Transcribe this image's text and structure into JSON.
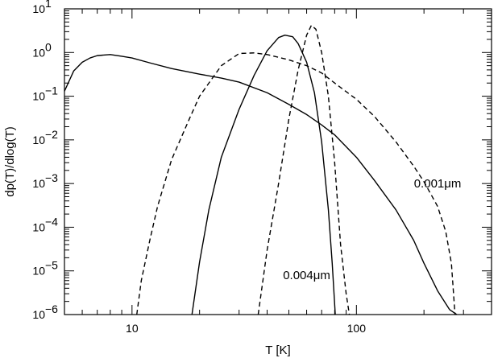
{
  "chart_data": {
    "type": "line",
    "xlabel": "T [K]",
    "ylabel": "dp(T)/dlog(T)",
    "x_scale": "log",
    "y_scale": "log",
    "xlim": [
      5,
      400
    ],
    "ylim": [
      1e-06,
      10
    ],
    "x_ticks": [
      {
        "value": 10,
        "label": "10"
      },
      {
        "value": 100,
        "label": "100"
      }
    ],
    "y_ticks": [
      {
        "value": 1e-06,
        "base": "10",
        "exp": "−6"
      },
      {
        "value": 1e-05,
        "base": "10",
        "exp": "−5"
      },
      {
        "value": 0.0001,
        "base": "10",
        "exp": "−4"
      },
      {
        "value": 0.001,
        "base": "10",
        "exp": "−3"
      },
      {
        "value": 0.01,
        "base": "10",
        "exp": "−2"
      },
      {
        "value": 0.1,
        "base": "10",
        "exp": "−1"
      },
      {
        "value": 1,
        "base": "10",
        "exp": "0"
      },
      {
        "value": 10,
        "base": "10",
        "exp": "1"
      }
    ],
    "annotations": [
      {
        "text": "0.001μm",
        "x": 230,
        "y": 0.001
      },
      {
        "text": "0.004μm",
        "x": 60,
        "y": 8e-06
      }
    ],
    "series": [
      {
        "style": "solid",
        "x": [
          5.0,
          5.5,
          6.0,
          6.5,
          7.0,
          8.0,
          9.0,
          10,
          12,
          15,
          20,
          25,
          30,
          40,
          50,
          60,
          70,
          80,
          100,
          120,
          150,
          180,
          200,
          230,
          260,
          280
        ],
        "y": [
          0.13,
          0.38,
          0.6,
          0.75,
          0.85,
          0.9,
          0.82,
          0.75,
          0.58,
          0.43,
          0.32,
          0.26,
          0.21,
          0.12,
          0.065,
          0.038,
          0.022,
          0.013,
          0.004,
          0.0012,
          0.00025,
          5e-05,
          1.5e-05,
          3.5e-06,
          1.3e-06,
          1e-06
        ]
      },
      {
        "style": "solid",
        "x": [
          18.5,
          20,
          22,
          25,
          30,
          35,
          40,
          45,
          48,
          52,
          55,
          60,
          65,
          70,
          75,
          78,
          80.5
        ],
        "y": [
          1e-06,
          1.6e-05,
          0.00025,
          0.004,
          0.05,
          0.3,
          1.1,
          2.2,
          2.5,
          2.3,
          1.6,
          0.6,
          0.12,
          0.009,
          0.00025,
          1.5e-05,
          1e-06
        ]
      },
      {
        "style": "dashed",
        "x": [
          10.5,
          11,
          12,
          13,
          15,
          18,
          20,
          25,
          30,
          35,
          40,
          50,
          60,
          70,
          80,
          100,
          120,
          150,
          180,
          200,
          230,
          250,
          265,
          275
        ],
        "y": [
          1e-06,
          6e-06,
          5e-05,
          0.0003,
          0.0035,
          0.03,
          0.1,
          0.5,
          0.95,
          0.98,
          0.9,
          0.68,
          0.5,
          0.34,
          0.2,
          0.085,
          0.035,
          0.009,
          0.0025,
          0.0011,
          0.0003,
          8e-05,
          1.5e-05,
          1e-06
        ]
      },
      {
        "style": "dashed",
        "x": [
          36.5,
          40,
          45,
          50,
          55,
          60,
          63,
          66,
          70,
          75,
          80,
          85,
          90,
          93
        ],
        "y": [
          1e-06,
          3e-05,
          0.001,
          0.03,
          0.4,
          2.5,
          4.2,
          3.4,
          1.0,
          0.1,
          0.003,
          4e-05,
          3e-06,
          1e-06
        ]
      }
    ]
  }
}
